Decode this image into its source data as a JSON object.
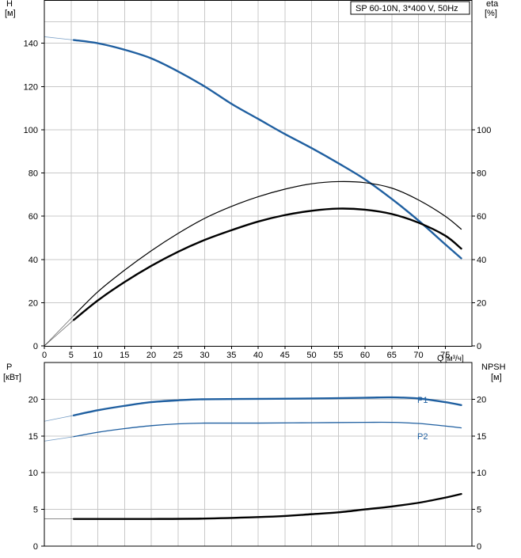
{
  "chart_data": [
    {
      "type": "line",
      "panel": "upper",
      "title_box": "SP 60-10N, 3*400 V, 50Hz",
      "ylabel_left": "H",
      "ylabel_left_unit": "[м]",
      "ylabel_right": "eta",
      "ylabel_right_unit": "[%]",
      "xlabel": "Q",
      "xlabel_unit": "[м³/ч]",
      "xlim": [
        0,
        80
      ],
      "ylim": [
        0,
        160
      ],
      "x_ticks": [
        "0",
        "5",
        "10",
        "15",
        "20",
        "25",
        "30",
        "35",
        "40",
        "45",
        "50",
        "55",
        "60",
        "65",
        "70",
        "75"
      ],
      "y_ticks_left": [
        "0",
        "20",
        "40",
        "60",
        "80",
        "100",
        "120",
        "140"
      ],
      "y_ticks_right": [
        "0",
        "20",
        "40",
        "60",
        "80",
        "100"
      ],
      "grid": true,
      "series": [
        {
          "key": "H",
          "color": "#1f5fa0",
          "extrapolated": [
            [
              0,
              143
            ],
            [
              5.5,
              141.5
            ]
          ],
          "points": [
            [
              5.5,
              141.5
            ],
            [
              10,
              140
            ],
            [
              15,
              137
            ],
            [
              20,
              133
            ],
            [
              25,
              127
            ],
            [
              30,
              120
            ],
            [
              35,
              112
            ],
            [
              40,
              105
            ],
            [
              45,
              98
            ],
            [
              50,
              91.5
            ],
            [
              55,
              84.5
            ],
            [
              60,
              77
            ],
            [
              65,
              68
            ],
            [
              70,
              58
            ],
            [
              75,
              47
            ],
            [
              78,
              40.5
            ]
          ]
        },
        {
          "key": "eta_pump",
          "color": "#000000",
          "extrapolated": [
            [
              0,
              0
            ],
            [
              5.5,
              14
            ]
          ],
          "points": [
            [
              5.5,
              14
            ],
            [
              10,
              25
            ],
            [
              15,
              35
            ],
            [
              20,
              44
            ],
            [
              25,
              52
            ],
            [
              30,
              59
            ],
            [
              35,
              64.5
            ],
            [
              40,
              69
            ],
            [
              45,
              72.5
            ],
            [
              50,
              75
            ],
            [
              55,
              76
            ],
            [
              60,
              75.5
            ],
            [
              65,
              73
            ],
            [
              70,
              67.5
            ],
            [
              75,
              60
            ],
            [
              78,
              54
            ]
          ]
        },
        {
          "key": "eta_total",
          "color": "#000000",
          "extrapolated": [
            [
              0,
              0
            ],
            [
              5.5,
              12
            ]
          ],
          "points": [
            [
              5.5,
              12
            ],
            [
              10,
              21
            ],
            [
              15,
              29.5
            ],
            [
              20,
              37
            ],
            [
              25,
              43.5
            ],
            [
              30,
              49
            ],
            [
              35,
              53.5
            ],
            [
              40,
              57.5
            ],
            [
              45,
              60.5
            ],
            [
              50,
              62.5
            ],
            [
              55,
              63.5
            ],
            [
              60,
              63
            ],
            [
              65,
              61
            ],
            [
              70,
              57
            ],
            [
              75,
              51
            ],
            [
              78,
              45
            ]
          ]
        }
      ]
    },
    {
      "type": "line",
      "panel": "lower",
      "ylabel_left": "P",
      "ylabel_left_unit": "[кВт]",
      "ylabel_right": "NPSH",
      "ylabel_right_unit": "[м]",
      "xlim": [
        0,
        80
      ],
      "ylim": [
        0,
        25
      ],
      "y_ticks_left": [
        "0",
        "5",
        "10",
        "15",
        "20"
      ],
      "y_ticks_right": [
        "0",
        "5",
        "10",
        "15",
        "20"
      ],
      "grid": true,
      "series": [
        {
          "name": "P1",
          "color": "#1f5fa0",
          "extrapolated": [
            [
              0,
              17
            ],
            [
              5.5,
              17.8
            ]
          ],
          "points": [
            [
              5.5,
              17.8
            ],
            [
              10,
              18.5
            ],
            [
              15,
              19.1
            ],
            [
              20,
              19.6
            ],
            [
              25,
              19.85
            ],
            [
              30,
              20
            ],
            [
              40,
              20.05
            ],
            [
              50,
              20.1
            ],
            [
              60,
              20.2
            ],
            [
              65,
              20.25
            ],
            [
              70,
              20.1
            ],
            [
              75,
              19.6
            ],
            [
              78,
              19.2
            ]
          ]
        },
        {
          "name": "P2",
          "color": "#1f5fa0",
          "extrapolated": [
            [
              0,
              14.3
            ],
            [
              5.5,
              14.9
            ]
          ],
          "points": [
            [
              5.5,
              14.9
            ],
            [
              10,
              15.5
            ],
            [
              15,
              16
            ],
            [
              20,
              16.4
            ],
            [
              25,
              16.65
            ],
            [
              30,
              16.75
            ],
            [
              40,
              16.75
            ],
            [
              50,
              16.8
            ],
            [
              60,
              16.85
            ],
            [
              65,
              16.85
            ],
            [
              70,
              16.7
            ],
            [
              75,
              16.35
            ],
            [
              78,
              16.1
            ]
          ]
        },
        {
          "key": "NPSH",
          "color": "#000000",
          "extrapolated": [
            [
              0,
              3.7
            ],
            [
              5.5,
              3.7
            ]
          ],
          "points": [
            [
              5.5,
              3.7
            ],
            [
              10,
              3.7
            ],
            [
              20,
              3.7
            ],
            [
              30,
              3.75
            ],
            [
              40,
              3.95
            ],
            [
              45,
              4.1
            ],
            [
              50,
              4.35
            ],
            [
              55,
              4.6
            ],
            [
              60,
              5.0
            ],
            [
              65,
              5.4
            ],
            [
              70,
              5.9
            ],
            [
              75,
              6.6
            ],
            [
              78,
              7.1
            ]
          ]
        }
      ]
    }
  ]
}
